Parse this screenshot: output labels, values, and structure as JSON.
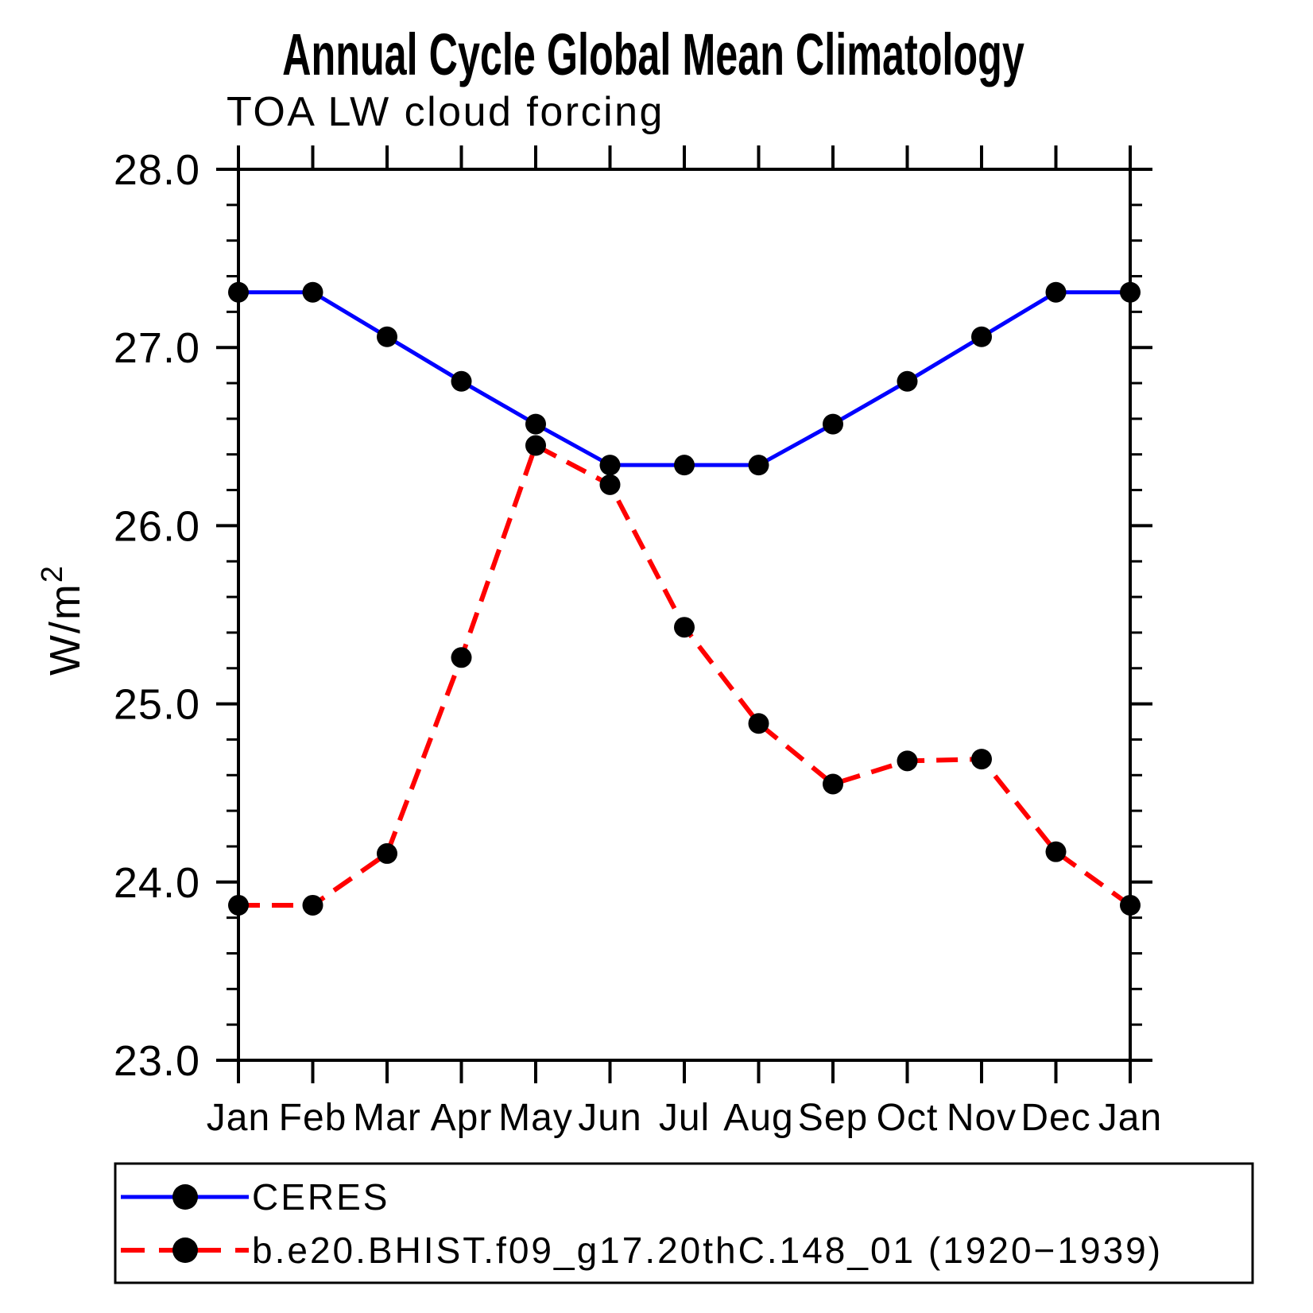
{
  "page": {
    "background": "#ffffff",
    "frame_color": "#000000"
  },
  "chart_data": {
    "type": "line",
    "title": "Annual Cycle Global Mean Climatology",
    "subtitle": "TOA LW cloud forcing",
    "ylabel": "W/m²",
    "xlabel": "",
    "x_labels": [
      "Jan",
      "Feb",
      "Mar",
      "Apr",
      "May",
      "Jun",
      "Jul",
      "Aug",
      "Sep",
      "Oct",
      "Nov",
      "Dec",
      "Jan"
    ],
    "ylim": [
      23.0,
      28.0
    ],
    "y_major_step": 1.0,
    "y_minor_step": 0.2,
    "y_tick_labels": [
      "28.0",
      "27.0",
      "26.0",
      "25.0",
      "24.0",
      "23.0"
    ],
    "grid": false,
    "legend_position": "bottom",
    "series": [
      {
        "name": "CERES",
        "color": "#0000ff",
        "style": "solid",
        "marker": "circle",
        "marker_color": "#000000",
        "values": [
          27.31,
          27.31,
          27.06,
          26.81,
          26.57,
          26.34,
          26.34,
          26.34,
          26.57,
          26.81,
          27.06,
          27.31,
          27.31
        ]
      },
      {
        "name": "b.e20.BHIST.f09_g17.20thC.148_01 (1920−1939)",
        "color": "#ff0000",
        "style": "dashed",
        "marker": "circle",
        "marker_color": "#000000",
        "values": [
          23.87,
          23.87,
          24.16,
          25.26,
          26.45,
          26.23,
          25.43,
          24.89,
          24.55,
          24.68,
          24.69,
          24.17,
          23.87
        ]
      }
    ]
  }
}
